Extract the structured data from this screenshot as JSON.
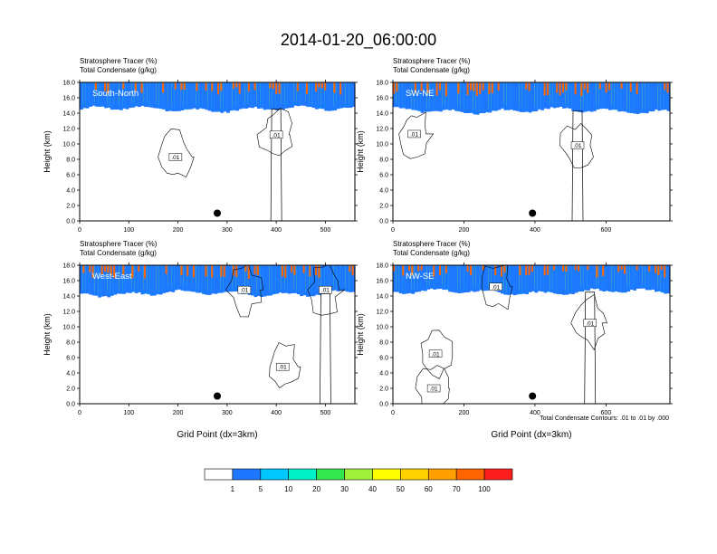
{
  "title": "2014-01-20_06:00:00",
  "shared": {
    "header_line1": "Stratosphere Tracer   (%)",
    "header_line2": "Total Condensate   (g/kg)",
    "ylabel": "Height (km)",
    "xlabel": "Grid Point (dx=3km)",
    "contour_note": "Total Condensate Contours: .01 to .01 by .000"
  },
  "colorbar": {
    "colors": [
      "#ffffff",
      "#1e78ff",
      "#00c8ff",
      "#00f0c8",
      "#32e650",
      "#a0f03c",
      "#ffff00",
      "#ffd200",
      "#ffa000",
      "#ff6400",
      "#ff1e1e"
    ],
    "labels": [
      "1",
      "5",
      "10",
      "20",
      "30",
      "40",
      "50",
      "60",
      "70",
      "100"
    ]
  },
  "chart_data": [
    {
      "type": "heatmap",
      "panel_label": "South-North",
      "ylim": [
        0,
        18
      ],
      "yticks": [
        "0.0",
        "2.0",
        "4.0",
        "6.0",
        "8.0",
        "10.0",
        "12.0",
        "14.0",
        "16.0",
        "18.0"
      ],
      "xlim": [
        0,
        560
      ],
      "xticks": [
        0,
        100,
        200,
        300,
        400,
        500
      ],
      "tracer_boundary_km": 15.0,
      "contour_labels": [
        {
          "text": ".01",
          "x": 195,
          "y": 8.3
        },
        {
          "text": ".01",
          "x": 400,
          "y": 11.2
        }
      ],
      "marker": {
        "x": 280,
        "y": 1.0
      }
    },
    {
      "type": "heatmap",
      "panel_label": "SW-NE",
      "ylim": [
        0,
        18
      ],
      "yticks": [
        "0.0",
        "2.0",
        "4.0",
        "6.0",
        "8.0",
        "10.0",
        "12.0",
        "14.0",
        "16.0",
        "18.0"
      ],
      "xlim": [
        0,
        780
      ],
      "xticks": [
        0,
        200,
        400,
        600
      ],
      "tracer_boundary_km": 14.8,
      "contour_labels": [
        {
          "text": ".01",
          "x": 60,
          "y": 11.3
        },
        {
          "text": ".01",
          "x": 520,
          "y": 9.8
        }
      ],
      "marker": {
        "x": 393,
        "y": 1.0
      }
    },
    {
      "type": "heatmap",
      "panel_label": "West-East",
      "ylim": [
        0,
        18
      ],
      "yticks": [
        "0.0",
        "2.0",
        "4.0",
        "6.0",
        "8.0",
        "10.0",
        "12.0",
        "14.0",
        "16.0",
        "18.0"
      ],
      "xlim": [
        0,
        560
      ],
      "xticks": [
        0,
        100,
        200,
        300,
        400,
        500
      ],
      "tracer_boundary_km": 14.8,
      "contour_labels": [
        {
          "text": ".01",
          "x": 335,
          "y": 14.8
        },
        {
          "text": ".01",
          "x": 413,
          "y": 4.8
        },
        {
          "text": ".01",
          "x": 500,
          "y": 14.8
        }
      ],
      "marker": {
        "x": 280,
        "y": 1.0
      }
    },
    {
      "type": "heatmap",
      "panel_label": "NW-SE",
      "ylim": [
        0,
        18
      ],
      "yticks": [
        "0.0",
        "2.0",
        "4.0",
        "6.0",
        "8.0",
        "10.0",
        "12.0",
        "14.0",
        "16.0",
        "18.0"
      ],
      "xlim": [
        0,
        780
      ],
      "xticks": [
        0,
        200,
        400,
        600
      ],
      "tracer_boundary_km": 15.0,
      "contour_labels": [
        {
          "text": ".01",
          "x": 120,
          "y": 6.5
        },
        {
          "text": ".01",
          "x": 115,
          "y": 2.0
        },
        {
          "text": ".01",
          "x": 290,
          "y": 15.2
        },
        {
          "text": ".01",
          "x": 555,
          "y": 10.5
        }
      ],
      "marker": {
        "x": 393,
        "y": 1.0
      }
    }
  ]
}
